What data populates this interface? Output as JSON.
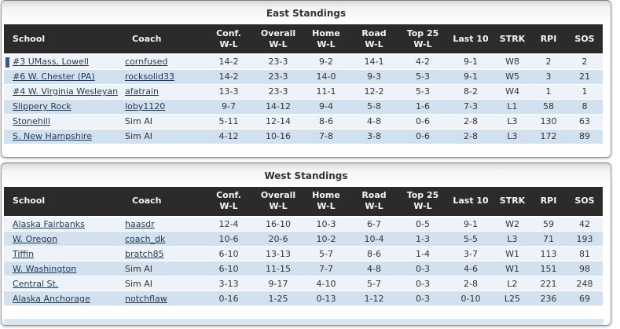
{
  "columns": [
    {
      "label": "School",
      "sub": ""
    },
    {
      "label": "Coach",
      "sub": ""
    },
    {
      "label": "Conf.",
      "sub": "W-L"
    },
    {
      "label": "Overall",
      "sub": "W-L"
    },
    {
      "label": "Home",
      "sub": "W-L"
    },
    {
      "label": "Road",
      "sub": "W-L"
    },
    {
      "label": "Top 25",
      "sub": "W-L"
    },
    {
      "label": "Last 10",
      "sub": ""
    },
    {
      "label": "STRK",
      "sub": ""
    },
    {
      "label": "RPI",
      "sub": ""
    },
    {
      "label": "SOS",
      "sub": ""
    }
  ],
  "tables": [
    {
      "title": "East Standings",
      "rows": [
        {
          "school": "#3 UMass, Lowell",
          "marker": true,
          "coach": "cornfused",
          "coach_link": true,
          "conf": "14-2",
          "overall": "23-3",
          "home": "9-2",
          "road": "14-1",
          "top25": "4-2",
          "last10": "9-1",
          "strk": "W8",
          "rpi": "2",
          "sos": "2"
        },
        {
          "school": "#6 W. Chester (PA)",
          "marker": false,
          "coach": "rocksolid33",
          "coach_link": true,
          "conf": "14-2",
          "overall": "23-3",
          "home": "14-0",
          "road": "9-3",
          "top25": "5-3",
          "last10": "9-1",
          "strk": "W5",
          "rpi": "3",
          "sos": "21"
        },
        {
          "school": "#4 W. Virginia Wesleyan",
          "marker": false,
          "coach": "afatrain",
          "coach_link": true,
          "conf": "13-3",
          "overall": "23-3",
          "home": "11-1",
          "road": "12-2",
          "top25": "5-3",
          "last10": "8-2",
          "strk": "W4",
          "rpi": "1",
          "sos": "1"
        },
        {
          "school": "Slippery Rock",
          "marker": false,
          "coach": "loby1120",
          "coach_link": true,
          "conf": "9-7",
          "overall": "14-12",
          "home": "9-4",
          "road": "5-8",
          "top25": "1-6",
          "last10": "7-3",
          "strk": "L1",
          "rpi": "58",
          "sos": "8"
        },
        {
          "school": "Stonehill",
          "marker": false,
          "coach": "Sim AI",
          "coach_link": false,
          "conf": "5-11",
          "overall": "12-14",
          "home": "8-6",
          "road": "4-8",
          "top25": "0-6",
          "last10": "2-8",
          "strk": "L3",
          "rpi": "130",
          "sos": "63"
        },
        {
          "school": "S. New Hampshire",
          "marker": false,
          "coach": "Sim AI",
          "coach_link": false,
          "conf": "4-12",
          "overall": "10-16",
          "home": "7-8",
          "road": "3-8",
          "top25": "0-6",
          "last10": "2-8",
          "strk": "L3",
          "rpi": "172",
          "sos": "89"
        }
      ]
    },
    {
      "title": "West Standings",
      "rows": [
        {
          "school": "Alaska Fairbanks",
          "marker": false,
          "coach": "haasdr",
          "coach_link": true,
          "conf": "12-4",
          "overall": "16-10",
          "home": "10-3",
          "road": "6-7",
          "top25": "0-5",
          "last10": "9-1",
          "strk": "W2",
          "rpi": "59",
          "sos": "42"
        },
        {
          "school": "W. Oregon",
          "marker": false,
          "coach": "coach_dk",
          "coach_link": true,
          "conf": "10-6",
          "overall": "20-6",
          "home": "10-2",
          "road": "10-4",
          "top25": "1-3",
          "last10": "5-5",
          "strk": "L3",
          "rpi": "71",
          "sos": "193"
        },
        {
          "school": "Tiffin",
          "marker": false,
          "coach": "bratch85",
          "coach_link": true,
          "conf": "6-10",
          "overall": "13-13",
          "home": "5-7",
          "road": "8-6",
          "top25": "1-4",
          "last10": "3-7",
          "strk": "W1",
          "rpi": "113",
          "sos": "81"
        },
        {
          "school": "W. Washington",
          "marker": false,
          "coach": "Sim AI",
          "coach_link": false,
          "conf": "6-10",
          "overall": "11-15",
          "home": "7-7",
          "road": "4-8",
          "top25": "0-3",
          "last10": "4-6",
          "strk": "W1",
          "rpi": "151",
          "sos": "98"
        },
        {
          "school": "Central St.",
          "marker": false,
          "coach": "Sim AI",
          "coach_link": false,
          "conf": "3-13",
          "overall": "9-17",
          "home": "4-10",
          "road": "5-7",
          "top25": "0-3",
          "last10": "2-8",
          "strk": "L2",
          "rpi": "221",
          "sos": "248"
        },
        {
          "school": "Alaska Anchorage",
          "marker": false,
          "coach": "notchflaw",
          "coach_link": true,
          "conf": "0-16",
          "overall": "1-25",
          "home": "0-13",
          "road": "1-12",
          "top25": "0-3",
          "last10": "0-10",
          "strk": "L25",
          "rpi": "236",
          "sos": "69"
        }
      ]
    }
  ],
  "colors": {
    "header_bg": "#2b2b2b",
    "header_text": "#f5f5f5",
    "row_light": "#edf3f9",
    "row_dark": "#d2e1f0",
    "link": "#243a52",
    "text": "#333333",
    "marker": "#305d8e",
    "panel_border": "#9a9a9a",
    "title_text": "#333333",
    "sliver": "#dbe7f3"
  }
}
